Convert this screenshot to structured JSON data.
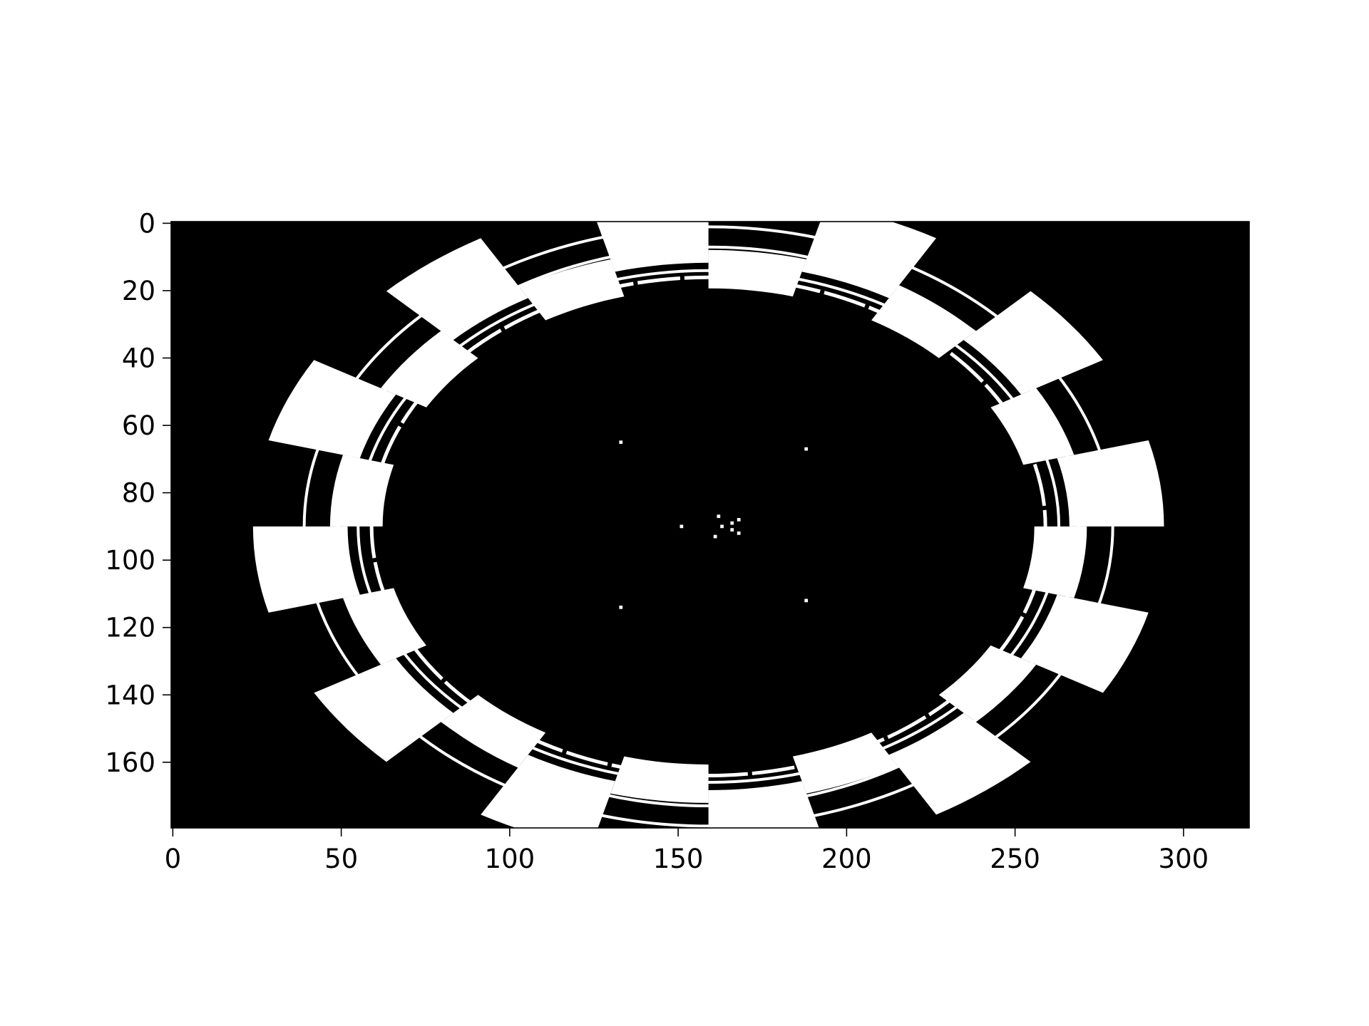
{
  "chart_data": {
    "type": "heatmap",
    "title": "",
    "xlabel": "",
    "ylabel": "",
    "image_size": {
      "width": 320,
      "height": 180
    },
    "xlim": [
      -0.5,
      319.5
    ],
    "ylim": [
      179.5,
      -0.5
    ],
    "y_inverted": true,
    "x_ticks": [
      0,
      50,
      100,
      150,
      200,
      250,
      300
    ],
    "y_ticks": [
      0,
      20,
      40,
      60,
      80,
      100,
      120,
      140,
      160
    ],
    "x_tick_labels": [
      "0",
      "50",
      "100",
      "150",
      "200",
      "250",
      "300"
    ],
    "y_tick_labels": [
      "0",
      "20",
      "40",
      "60",
      "80",
      "100",
      "120",
      "140",
      "160"
    ],
    "colormap": "gray",
    "value_range": [
      0,
      1
    ],
    "grid": false,
    "colors": {
      "background": "#000000",
      "foreground": "#ffffff"
    },
    "content": {
      "center": [
        159,
        90
      ],
      "ring_ellipses": [
        {
          "rx": 100,
          "ry": 74
        },
        {
          "rx": 104,
          "ry": 76
        },
        {
          "rx": 110,
          "ry": 83
        },
        {
          "rx": 120,
          "ry": 89
        }
      ],
      "checker_sectors": 24,
      "checker_band": [
        0.93,
        1.3
      ],
      "center_dots": [
        [
          163,
          90
        ],
        [
          166,
          89
        ],
        [
          166,
          91
        ],
        [
          168,
          88
        ],
        [
          168,
          92
        ],
        [
          162,
          87
        ],
        [
          161,
          93
        ],
        [
          151,
          90
        ],
        [
          133,
          65
        ],
        [
          188,
          67
        ],
        [
          133,
          114
        ],
        [
          188,
          112
        ]
      ]
    }
  }
}
